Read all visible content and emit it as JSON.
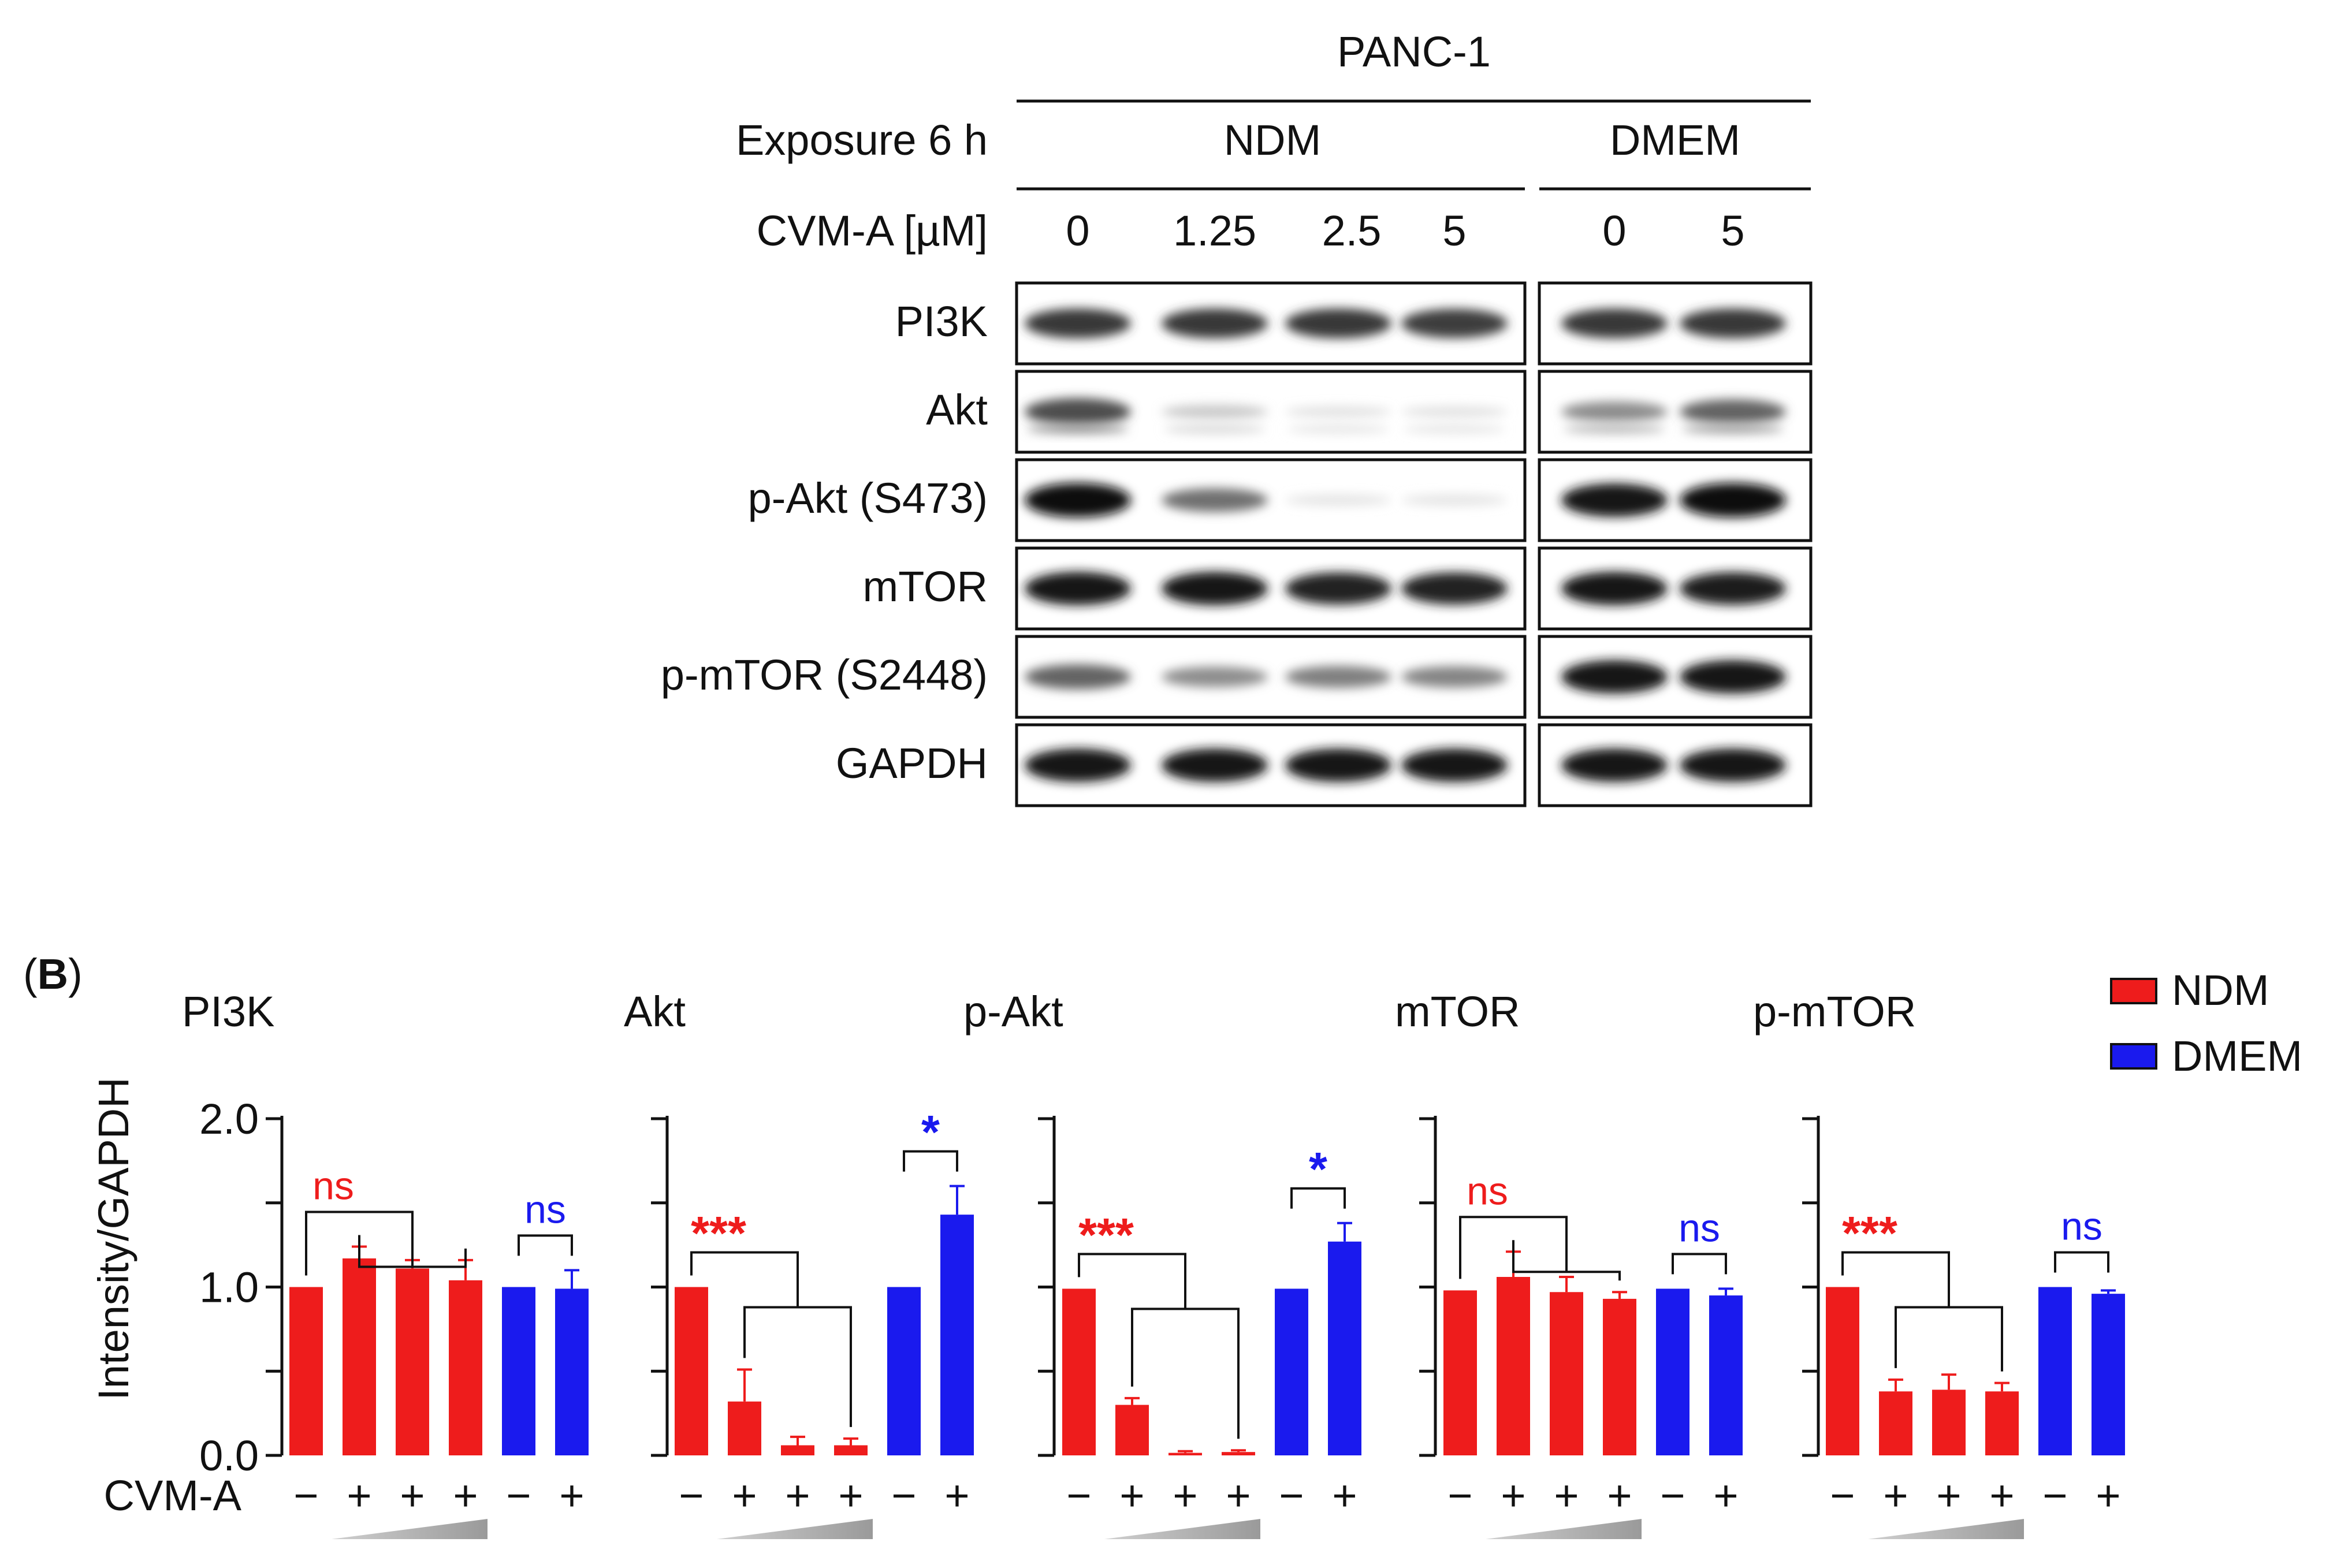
{
  "blot": {
    "cell_line": "PANC-1",
    "exposure_label": "Exposure 6 h",
    "dose_label": "CVM-A [µM]",
    "groups": [
      {
        "name": "NDM",
        "doses": [
          "0",
          "1.25",
          "2.5",
          "5"
        ]
      },
      {
        "name": "DMEM",
        "doses": [
          "0",
          "5"
        ]
      }
    ],
    "proteins": [
      "PI3K",
      "Akt",
      "p-Akt (S473)",
      "mTOR",
      "p-mTOR (S2448)",
      "GAPDH"
    ],
    "band_intensity": [
      [
        0.8,
        0.8,
        0.8,
        0.78,
        0.8,
        0.8
      ],
      [
        0.7,
        0.15,
        0.04,
        0.04,
        0.42,
        0.6
      ],
      [
        1.0,
        0.55,
        0.03,
        0.03,
        0.95,
        1.0
      ],
      [
        0.95,
        0.95,
        0.9,
        0.9,
        0.95,
        0.92
      ],
      [
        0.6,
        0.42,
        0.48,
        0.46,
        0.95,
        0.95
      ],
      [
        0.95,
        0.95,
        0.95,
        0.95,
        0.95,
        0.95
      ]
    ]
  },
  "panel_b": {
    "letter": "B"
  },
  "legend": [
    {
      "name": "NDM",
      "color": "#ee1c1c"
    },
    {
      "name": "DMEM",
      "color": "#1a1aee"
    }
  ],
  "x_treatment_label": "CVM-A",
  "treatment_signs": [
    "−",
    "+",
    "+",
    "+",
    "−",
    "+"
  ],
  "chart_data": [
    {
      "type": "bar",
      "title": "PI3K",
      "ylabel": "Intensity/GAPDH",
      "ylim": [
        0,
        2.0
      ],
      "yticks": [
        0.0,
        0.5,
        1.0,
        1.5,
        2.0
      ],
      "ytick_labels": [
        "0.0",
        "",
        "1.0",
        "",
        "2.0"
      ],
      "series": [
        {
          "name": "NDM",
          "values": [
            1.0,
            1.17,
            1.11,
            1.04
          ],
          "errors": [
            0,
            0.07,
            0.05,
            0.12
          ]
        },
        {
          "name": "DMEM",
          "values": [
            1.0,
            0.99
          ],
          "errors": [
            0,
            0.11
          ]
        }
      ],
      "significance": {
        "NDM": "ns",
        "DMEM": "ns"
      }
    },
    {
      "type": "bar",
      "title": "Akt",
      "ylim": [
        0,
        2.0
      ],
      "yticks": [
        0.0,
        0.5,
        1.0,
        1.5,
        2.0
      ],
      "series": [
        {
          "name": "NDM",
          "values": [
            1.0,
            0.32,
            0.06,
            0.06
          ],
          "errors": [
            0,
            0.19,
            0.05,
            0.04
          ]
        },
        {
          "name": "DMEM",
          "values": [
            1.0,
            1.43
          ],
          "errors": [
            0,
            0.17
          ]
        }
      ],
      "significance": {
        "NDM": "***",
        "DMEM": "*"
      }
    },
    {
      "type": "bar",
      "title": "p-Akt",
      "ylim": [
        0,
        2.0
      ],
      "yticks": [
        0.0,
        0.5,
        1.0,
        1.5,
        2.0
      ],
      "series": [
        {
          "name": "NDM",
          "values": [
            0.99,
            0.3,
            0.015,
            0.02
          ],
          "errors": [
            0,
            0.04,
            0.01,
            0.01
          ]
        },
        {
          "name": "DMEM",
          "values": [
            0.99,
            1.27
          ],
          "errors": [
            0,
            0.11
          ]
        }
      ],
      "significance": {
        "NDM": "***",
        "DMEM": "*"
      }
    },
    {
      "type": "bar",
      "title": "mTOR",
      "ylim": [
        0,
        2.0
      ],
      "yticks": [
        0.0,
        0.5,
        1.0,
        1.5,
        2.0
      ],
      "series": [
        {
          "name": "NDM",
          "values": [
            0.98,
            1.06,
            0.97,
            0.93
          ],
          "errors": [
            0,
            0.15,
            0.09,
            0.04
          ]
        },
        {
          "name": "DMEM",
          "values": [
            0.99,
            0.95
          ],
          "errors": [
            0,
            0.04
          ]
        }
      ],
      "significance": {
        "NDM": "ns",
        "DMEM": "ns"
      }
    },
    {
      "type": "bar",
      "title": "p-mTOR",
      "ylim": [
        0,
        2.0
      ],
      "yticks": [
        0.0,
        0.5,
        1.0,
        1.5,
        2.0
      ],
      "series": [
        {
          "name": "NDM",
          "values": [
            1.0,
            0.38,
            0.39,
            0.38
          ],
          "errors": [
            0,
            0.07,
            0.09,
            0.05
          ]
        },
        {
          "name": "DMEM",
          "values": [
            1.0,
            0.96
          ],
          "errors": [
            0,
            0.02
          ]
        }
      ],
      "significance": {
        "NDM": "***",
        "DMEM": "ns"
      }
    }
  ]
}
